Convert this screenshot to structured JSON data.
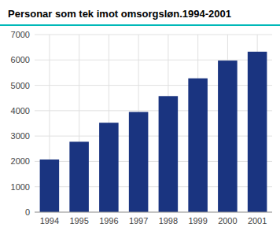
{
  "chart_data": {
    "type": "bar",
    "title": "Personar som tek imot omsorgsløn.1994-2001",
    "categories": [
      "1994",
      "1995",
      "1996",
      "1997",
      "1998",
      "1999",
      "2000",
      "2001"
    ],
    "values": [
      2075,
      2775,
      3525,
      3950,
      4575,
      5275,
      5975,
      6325
    ],
    "color": "#1a3480",
    "ylim": [
      0,
      7000
    ],
    "yticks": [
      0,
      1000,
      2000,
      3000,
      4000,
      5000,
      6000,
      7000
    ],
    "grid": true
  }
}
